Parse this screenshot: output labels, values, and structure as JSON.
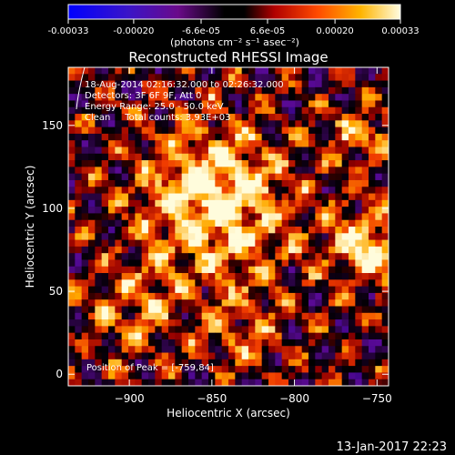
{
  "chart_data": {
    "type": "heatmap",
    "title": "Reconstructed RHESSI Image",
    "colorbar": {
      "ticks": [
        "-0.00033",
        "-0.00020",
        "-6.6e-05",
        "6.6e-05",
        "0.00020",
        "0.00033"
      ],
      "tick_values": [
        -0.00033,
        -0.0002,
        -6.6e-05,
        6.6e-05,
        0.0002,
        0.00033
      ],
      "range": [
        -0.00033,
        0.00033
      ],
      "label": "(photons cm⁻² s⁻¹ asec⁻²)",
      "colormap": "blue-purple-red-orange-yellow-white"
    },
    "xlabel": "Heliocentric X (arcsec)",
    "ylabel": "Heliocentric Y (arcsec)",
    "xlim": [
      -937,
      -743
    ],
    "ylim": [
      -7,
      185
    ],
    "xticks": [
      -900,
      -850,
      -800,
      -750
    ],
    "xtick_labels": [
      "−900",
      "−850",
      "−800",
      "−750"
    ],
    "yticks": [
      0,
      50,
      100,
      150
    ],
    "yticks_labels": [
      "0",
      "50",
      "100",
      "150"
    ],
    "annotations": [
      "18-Aug-2014 02:16:32.000 to 02:26:32.000",
      "Detectors: 3F 6F 9F, Att 0",
      "Energy Range: 25.0 - 50.0 keV",
      "Clean     Total counts: 3.93E+03"
    ],
    "peak_label": "Position of Peak = [-759,84]",
    "peak_position": [
      -759,
      84
    ],
    "timestamp": "13-Jan-2017 22:23",
    "colors": {
      "background": "#000000",
      "text": "#ffffff"
    }
  }
}
